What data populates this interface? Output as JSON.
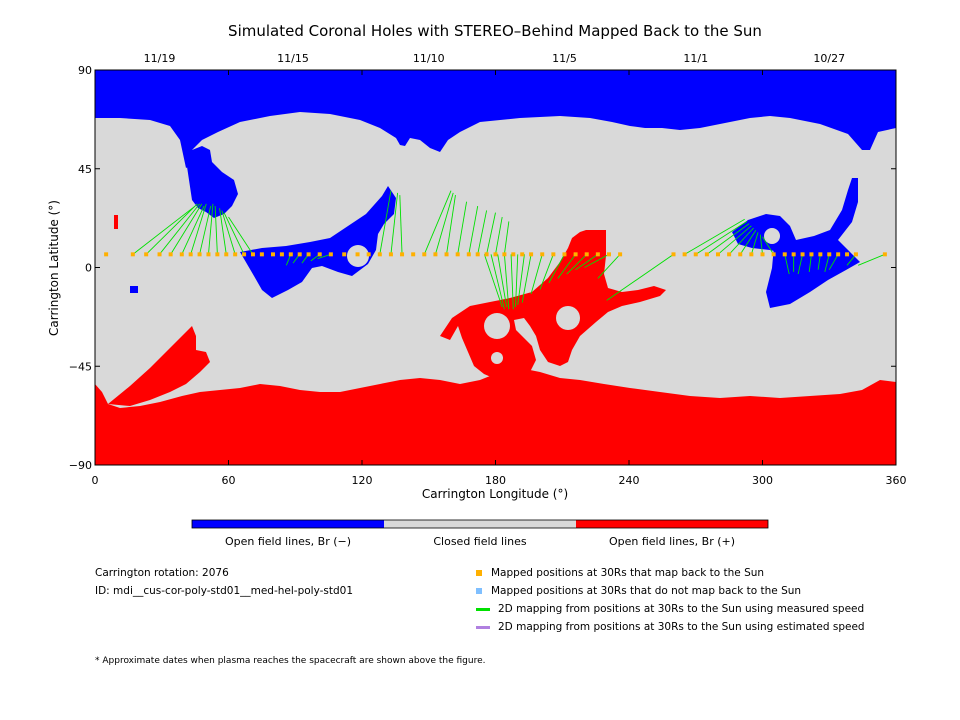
{
  "chart_data": {
    "type": "map",
    "title": "Simulated Coronal Holes with STEREO–Behind Mapped Back to the Sun",
    "xlabel": "Carrington Longitude (°)",
    "ylabel": "Carrington Latitude (°)",
    "xlim": [
      0,
      360
    ],
    "ylim": [
      -90,
      90
    ],
    "xticks": [
      0,
      60,
      120,
      180,
      240,
      300,
      360
    ],
    "yticks": [
      -90,
      -45,
      0,
      45,
      90
    ],
    "top_axis_dates": [
      {
        "label": "11/19",
        "lon": 29
      },
      {
        "label": "11/15",
        "lon": 89
      },
      {
        "label": "11/10",
        "lon": 150
      },
      {
        "label": "11/5",
        "lon": 211
      },
      {
        "label": "11/1",
        "lon": 270
      },
      {
        "label": "10/27",
        "lon": 330
      }
    ],
    "colors": {
      "open_negative": "#0000ff",
      "closed": "#d9d9d9",
      "open_positive": "#ff0000",
      "mapped_back": "#ffb000",
      "not_mapped_back": "#7fbfff",
      "measured_speed": "#00e000",
      "estimated_speed": "#b080e0"
    },
    "colorbar": [
      {
        "label": "Open field lines, Br (−)",
        "color": "#0000ff"
      },
      {
        "label": "Closed field lines",
        "color": "#d9d9d9"
      },
      {
        "label": "Open field lines, Br (+)",
        "color": "#ff0000"
      }
    ],
    "spacecraft_track_lat": 6,
    "mapped_positions_lon": [
      5,
      17,
      23,
      29,
      34,
      39,
      43,
      47,
      51,
      55,
      59,
      63,
      67,
      71,
      75,
      80,
      84,
      88,
      92,
      96,
      101,
      106,
      112,
      118,
      123,
      128,
      133,
      138,
      143,
      148,
      153,
      158,
      163,
      168,
      172,
      176,
      180,
      184,
      188,
      192,
      196,
      201,
      206,
      211,
      216,
      221,
      226,
      231,
      236,
      260,
      265,
      270,
      275,
      280,
      285,
      290,
      295,
      300,
      305,
      310,
      314,
      318,
      322,
      326,
      330,
      334,
      338,
      342,
      355
    ],
    "mapping_lines_measured": [
      {
        "from": [
          17,
          6
        ],
        "to": [
          45,
          28
        ]
      },
      {
        "from": [
          23,
          6
        ],
        "to": [
          46,
          29
        ]
      },
      {
        "from": [
          29,
          6
        ],
        "to": [
          47,
          29
        ]
      },
      {
        "from": [
          34,
          6
        ],
        "to": [
          48,
          29
        ]
      },
      {
        "from": [
          39,
          6
        ],
        "to": [
          49,
          28
        ]
      },
      {
        "from": [
          43,
          6
        ],
        "to": [
          50,
          29
        ]
      },
      {
        "from": [
          47,
          6
        ],
        "to": [
          52,
          28
        ]
      },
      {
        "from": [
          51,
          6
        ],
        "to": [
          53,
          29
        ]
      },
      {
        "from": [
          55,
          6
        ],
        "to": [
          54,
          28
        ]
      },
      {
        "from": [
          59,
          6
        ],
        "to": [
          56,
          27
        ]
      },
      {
        "from": [
          63,
          6
        ],
        "to": [
          57,
          26
        ]
      },
      {
        "from": [
          67,
          6
        ],
        "to": [
          58,
          25
        ]
      },
      {
        "from": [
          71,
          6
        ],
        "to": [
          60,
          23
        ]
      },
      {
        "from": [
          88,
          6
        ],
        "to": [
          86,
          1
        ]
      },
      {
        "from": [
          92,
          6
        ],
        "to": [
          89,
          2
        ]
      },
      {
        "from": [
          96,
          6
        ],
        "to": [
          93,
          2
        ]
      },
      {
        "from": [
          101,
          6
        ],
        "to": [
          97,
          3
        ]
      },
      {
        "from": [
          106,
          6
        ],
        "to": [
          100,
          4
        ]
      },
      {
        "from": [
          128,
          6
        ],
        "to": [
          133,
          35
        ]
      },
      {
        "from": [
          133,
          6
        ],
        "to": [
          136,
          34
        ]
      },
      {
        "from": [
          138,
          6
        ],
        "to": [
          137,
          33
        ]
      },
      {
        "from": [
          148,
          6
        ],
        "to": [
          160,
          35
        ]
      },
      {
        "from": [
          153,
          6
        ],
        "to": [
          161,
          34
        ]
      },
      {
        "from": [
          158,
          6
        ],
        "to": [
          162,
          33
        ]
      },
      {
        "from": [
          163,
          6
        ],
        "to": [
          167,
          30
        ]
      },
      {
        "from": [
          168,
          6
        ],
        "to": [
          172,
          28
        ]
      },
      {
        "from": [
          172,
          6
        ],
        "to": [
          176,
          26
        ]
      },
      {
        "from": [
          176,
          6
        ],
        "to": [
          180,
          25
        ]
      },
      {
        "from": [
          180,
          6
        ],
        "to": [
          183,
          23
        ]
      },
      {
        "from": [
          184,
          6
        ],
        "to": [
          186,
          21
        ]
      },
      {
        "from": [
          175,
          6
        ],
        "to": [
          183,
          -18
        ]
      },
      {
        "from": [
          178,
          6
        ],
        "to": [
          184,
          -19
        ]
      },
      {
        "from": [
          181,
          6
        ],
        "to": [
          185,
          -18
        ]
      },
      {
        "from": [
          184,
          6
        ],
        "to": [
          186,
          -19
        ]
      },
      {
        "from": [
          187,
          6
        ],
        "to": [
          188,
          -19
        ]
      },
      {
        "from": [
          190,
          6
        ],
        "to": [
          189,
          -18
        ]
      },
      {
        "from": [
          193,
          6
        ],
        "to": [
          190,
          -17
        ]
      },
      {
        "from": [
          196,
          6
        ],
        "to": [
          192,
          -16
        ]
      },
      {
        "from": [
          201,
          6
        ],
        "to": [
          196,
          -12
        ]
      },
      {
        "from": [
          206,
          6
        ],
        "to": [
          200,
          -10
        ]
      },
      {
        "from": [
          211,
          6
        ],
        "to": [
          204,
          -7
        ]
      },
      {
        "from": [
          216,
          6
        ],
        "to": [
          208,
          -5
        ]
      },
      {
        "from": [
          221,
          6
        ],
        "to": [
          212,
          -3
        ]
      },
      {
        "from": [
          226,
          6
        ],
        "to": [
          216,
          -1
        ]
      },
      {
        "from": [
          231,
          6
        ],
        "to": [
          220,
          0
        ]
      },
      {
        "from": [
          236,
          6
        ],
        "to": [
          226,
          -5
        ]
      },
      {
        "from": [
          260,
          6
        ],
        "to": [
          230,
          -15
        ]
      },
      {
        "from": [
          265,
          6
        ],
        "to": [
          292,
          22
        ]
      },
      {
        "from": [
          270,
          6
        ],
        "to": [
          293,
          21
        ]
      },
      {
        "from": [
          275,
          6
        ],
        "to": [
          294,
          20
        ]
      },
      {
        "from": [
          280,
          6
        ],
        "to": [
          295,
          19
        ]
      },
      {
        "from": [
          285,
          6
        ],
        "to": [
          296,
          18
        ]
      },
      {
        "from": [
          290,
          6
        ],
        "to": [
          297,
          17
        ]
      },
      {
        "from": [
          295,
          6
        ],
        "to": [
          298,
          16
        ]
      },
      {
        "from": [
          300,
          6
        ],
        "to": [
          299,
          15
        ]
      },
      {
        "from": [
          305,
          6
        ],
        "to": [
          300,
          14
        ]
      },
      {
        "from": [
          310,
          6
        ],
        "to": [
          312,
          -3
        ]
      },
      {
        "from": [
          314,
          6
        ],
        "to": [
          314,
          -2
        ]
      },
      {
        "from": [
          318,
          6
        ],
        "to": [
          316,
          -3
        ]
      },
      {
        "from": [
          322,
          6
        ],
        "to": [
          321,
          -2
        ]
      },
      {
        "from": [
          326,
          6
        ],
        "to": [
          325,
          -1
        ]
      },
      {
        "from": [
          330,
          6
        ],
        "to": [
          328,
          -2
        ]
      },
      {
        "from": [
          334,
          6
        ],
        "to": [
          330,
          -1
        ]
      },
      {
        "from": [
          342,
          6
        ],
        "to": [
          338,
          1
        ]
      },
      {
        "from": [
          355,
          6
        ],
        "to": [
          343,
          1
        ]
      }
    ]
  },
  "colorbar_labels": {
    "negative": "Open field lines, Br (−)",
    "closed": "Closed field lines",
    "positive": "Open field lines, Br (+)"
  },
  "info": {
    "rotation": "Carrington rotation: 2076",
    "id": "ID: mdi__cus-cor-poly-std01__med-hel-poly-std01"
  },
  "legend": [
    {
      "label": "Mapped positions at 30Rs that map back to the Sun",
      "type": "square",
      "color": "#ffb000"
    },
    {
      "label": "Mapped positions at 30Rs that do not map back to the Sun",
      "type": "square",
      "color": "#7fbfff"
    },
    {
      "label": "2D mapping from positions at 30Rs to the Sun using measured speed",
      "type": "line",
      "color": "#00e000"
    },
    {
      "label": "2D mapping from positions at 30Rs to the Sun using estimated speed",
      "type": "line",
      "color": "#b080e0"
    }
  ],
  "footnote": "* Approximate dates when plasma reaches the spacecraft are shown above the figure."
}
